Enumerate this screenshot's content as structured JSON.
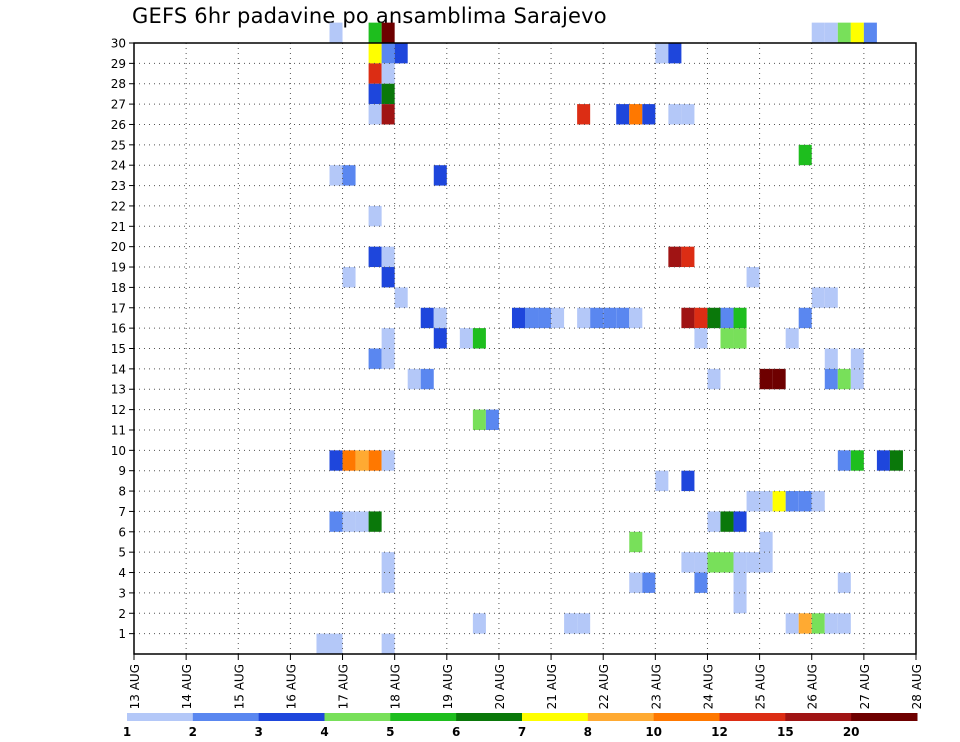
{
  "chart_data": {
    "type": "heatmap",
    "title": "GEFS 6hr padavine po ansamblima Sarajevo",
    "xlabel": "",
    "ylabel": "",
    "x_ticks": [
      "13 AUG",
      "14 AUG",
      "15 AUG",
      "16 AUG",
      "17 AUG",
      "18 AUG",
      "19 AUG",
      "20 AUG",
      "21 AUG",
      "22 AUG",
      "23 AUG",
      "24 AUG",
      "25 AUG",
      "26 AUG",
      "27 AUG",
      "28 AUG"
    ],
    "xlim_days": [
      0,
      15
    ],
    "y_ticks": [
      1,
      2,
      3,
      4,
      5,
      6,
      7,
      8,
      9,
      10,
      11,
      12,
      13,
      14,
      15,
      16,
      17,
      18,
      19,
      20,
      21,
      22,
      23,
      24,
      25,
      26,
      27,
      28,
      29,
      30
    ],
    "ylim": [
      0,
      30
    ],
    "grid": true,
    "levels": [
      1,
      2,
      3,
      4,
      5,
      6,
      7,
      8,
      10,
      12,
      15,
      20
    ],
    "colors": [
      "#b4c8f8",
      "#5a87f0",
      "#1e46dc",
      "#78e05a",
      "#1ebe1e",
      "#0a780a",
      "#ffff00",
      "#ffaa32",
      "#ff7800",
      "#dc2d14",
      "#a01414",
      "#6e0000"
    ],
    "cells_desc": "each cell: [day offset from 13 AUG 00z (6h steps), ensemble member, color class 1-12]",
    "cells": [
      [
        3.75,
        30,
        1
      ],
      [
        4.5,
        30,
        5
      ],
      [
        4.75,
        30,
        12
      ],
      [
        13.0,
        30,
        1
      ],
      [
        13.25,
        30,
        1
      ],
      [
        13.5,
        30,
        4
      ],
      [
        13.75,
        30,
        7
      ],
      [
        14.0,
        30,
        2
      ],
      [
        4.5,
        29,
        7
      ],
      [
        4.75,
        29,
        2
      ],
      [
        5.0,
        29,
        3
      ],
      [
        10.0,
        29,
        1
      ],
      [
        10.25,
        29,
        3
      ],
      [
        4.5,
        28,
        10
      ],
      [
        4.75,
        28,
        1
      ],
      [
        4.5,
        27,
        3
      ],
      [
        4.75,
        27,
        6
      ],
      [
        4.5,
        26,
        1
      ],
      [
        4.75,
        26,
        11
      ],
      [
        8.5,
        26,
        10
      ],
      [
        9.25,
        26,
        3
      ],
      [
        9.5,
        26,
        9
      ],
      [
        9.75,
        26,
        3
      ],
      [
        10.25,
        26,
        1
      ],
      [
        10.5,
        26,
        1
      ],
      [
        12.75,
        24,
        5
      ],
      [
        3.75,
        23,
        1
      ],
      [
        4.0,
        23,
        2
      ],
      [
        5.75,
        23,
        3
      ],
      [
        4.5,
        21,
        1
      ],
      [
        4.5,
        19,
        3
      ],
      [
        4.75,
        19,
        1
      ],
      [
        10.25,
        19,
        11
      ],
      [
        10.5,
        19,
        10
      ],
      [
        4.0,
        18,
        1
      ],
      [
        4.75,
        18,
        3
      ],
      [
        11.75,
        18,
        1
      ],
      [
        5.0,
        17,
        1
      ],
      [
        13.0,
        17,
        1
      ],
      [
        13.25,
        17,
        1
      ],
      [
        5.5,
        16,
        3
      ],
      [
        5.75,
        16,
        1
      ],
      [
        7.25,
        16,
        3
      ],
      [
        7.5,
        16,
        2
      ],
      [
        7.75,
        16,
        2
      ],
      [
        8.0,
        16,
        1
      ],
      [
        8.5,
        16,
        1
      ],
      [
        8.75,
        16,
        2
      ],
      [
        9.0,
        16,
        2
      ],
      [
        9.25,
        16,
        2
      ],
      [
        9.5,
        16,
        1
      ],
      [
        10.5,
        16,
        11
      ],
      [
        10.75,
        16,
        10
      ],
      [
        11.0,
        16,
        6
      ],
      [
        11.25,
        16,
        2
      ],
      [
        11.5,
        16,
        5
      ],
      [
        12.75,
        16,
        2
      ],
      [
        4.75,
        15,
        1
      ],
      [
        5.75,
        15,
        3
      ],
      [
        6.25,
        15,
        1
      ],
      [
        6.5,
        15,
        5
      ],
      [
        10.75,
        15,
        1
      ],
      [
        11.25,
        15,
        4
      ],
      [
        11.5,
        15,
        4
      ],
      [
        12.5,
        15,
        1
      ],
      [
        4.5,
        14,
        2
      ],
      [
        4.75,
        14,
        1
      ],
      [
        13.25,
        14,
        1
      ],
      [
        13.75,
        14,
        1
      ],
      [
        5.25,
        13,
        1
      ],
      [
        5.5,
        13,
        2
      ],
      [
        11.0,
        13,
        1
      ],
      [
        12.0,
        13,
        12
      ],
      [
        12.25,
        13,
        12
      ],
      [
        13.25,
        13,
        2
      ],
      [
        13.5,
        13,
        4
      ],
      [
        13.75,
        13,
        1
      ],
      [
        6.5,
        11,
        4
      ],
      [
        6.75,
        11,
        2
      ],
      [
        3.75,
        9,
        3
      ],
      [
        4.0,
        9,
        9
      ],
      [
        4.25,
        9,
        8
      ],
      [
        4.5,
        9,
        9
      ],
      [
        4.75,
        9,
        1
      ],
      [
        13.5,
        9,
        2
      ],
      [
        13.75,
        9,
        5
      ],
      [
        14.25,
        9,
        3
      ],
      [
        14.5,
        9,
        6
      ],
      [
        10.0,
        8,
        1
      ],
      [
        10.5,
        8,
        3
      ],
      [
        11.75,
        7,
        1
      ],
      [
        12.0,
        7,
        1
      ],
      [
        12.25,
        7,
        7
      ],
      [
        12.5,
        7,
        2
      ],
      [
        12.75,
        7,
        2
      ],
      [
        13.0,
        7,
        1
      ],
      [
        3.75,
        6,
        2
      ],
      [
        4.0,
        6,
        1
      ],
      [
        4.25,
        6,
        1
      ],
      [
        4.5,
        6,
        6
      ],
      [
        11.0,
        6,
        1
      ],
      [
        11.25,
        6,
        6
      ],
      [
        11.5,
        6,
        3
      ],
      [
        9.5,
        5,
        4
      ],
      [
        12.0,
        5,
        1
      ],
      [
        4.75,
        4,
        1
      ],
      [
        10.5,
        4,
        1
      ],
      [
        10.75,
        4,
        1
      ],
      [
        11.0,
        4,
        4
      ],
      [
        11.25,
        4,
        4
      ],
      [
        11.5,
        4,
        1
      ],
      [
        11.75,
        4,
        1
      ],
      [
        12.0,
        4,
        1
      ],
      [
        4.75,
        3,
        1
      ],
      [
        9.5,
        3,
        1
      ],
      [
        9.75,
        3,
        2
      ],
      [
        10.75,
        3,
        2
      ],
      [
        11.5,
        3,
        1
      ],
      [
        13.5,
        3,
        1
      ],
      [
        11.5,
        2,
        1
      ],
      [
        6.5,
        1,
        1
      ],
      [
        8.25,
        1,
        1
      ],
      [
        8.5,
        1,
        1
      ],
      [
        12.5,
        1,
        1
      ],
      [
        12.75,
        1,
        8
      ],
      [
        13.0,
        1,
        4
      ],
      [
        13.25,
        1,
        1
      ],
      [
        13.5,
        1,
        1
      ],
      [
        3.5,
        0,
        1
      ],
      [
        3.75,
        0,
        1
      ],
      [
        4.75,
        0,
        1
      ]
    ]
  },
  "colorbar": {
    "labels": [
      "1",
      "2",
      "3",
      "4",
      "5",
      "6",
      "7",
      "8",
      "10",
      "12",
      "15",
      "20"
    ]
  }
}
